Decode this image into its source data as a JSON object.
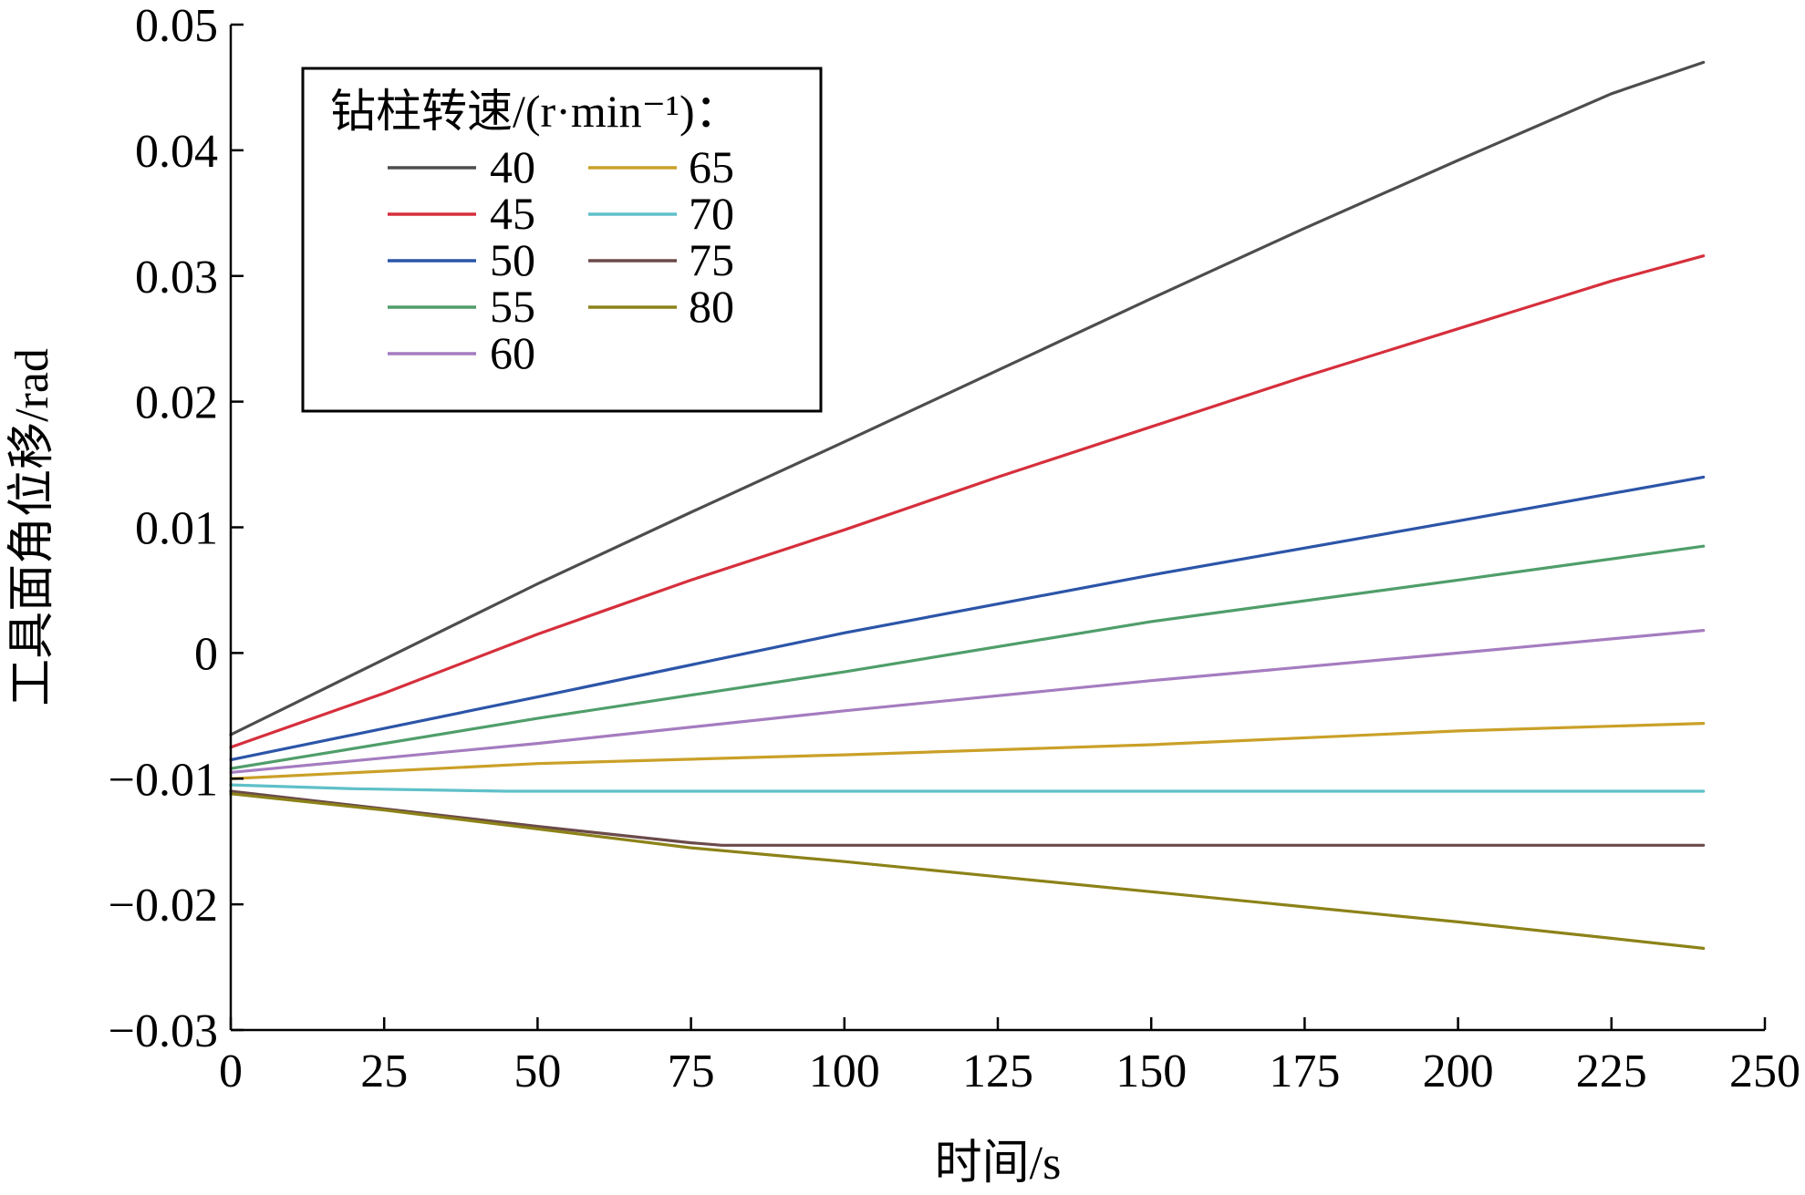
{
  "chart_data": {
    "type": "line",
    "title": "",
    "xlabel": "时间/s",
    "ylabel": "工具面角位移/rad",
    "xlim": [
      0,
      250
    ],
    "ylim": [
      -0.03,
      0.05
    ],
    "x_ticks": [
      0,
      25,
      50,
      75,
      100,
      125,
      150,
      175,
      200,
      225,
      250
    ],
    "x_tick_labels": [
      "0",
      "25",
      "50",
      "75",
      "100",
      "125",
      "150",
      "175",
      "200",
      "225",
      "250"
    ],
    "y_ticks": [
      -0.03,
      -0.02,
      -0.01,
      0,
      0.01,
      0.02,
      0.03,
      0.04,
      0.05
    ],
    "y_tick_labels": [
      "−0.03",
      "−0.02",
      "−0.01",
      "0",
      "0.01",
      "0.02",
      "0.03",
      "0.04",
      "0.05"
    ],
    "grid": false,
    "legend": {
      "title": "钻柱转速/(r·min⁻¹)：",
      "placement": "top-left",
      "columns": 2
    },
    "series": [
      {
        "name": "40",
        "color": "#4d4d4d",
        "x": [
          0,
          25,
          50,
          75,
          100,
          125,
          150,
          175,
          200,
          225,
          240
        ],
        "y": [
          -0.0065,
          -0.0005,
          0.0055,
          0.0112,
          0.0168,
          0.0225,
          0.0282,
          0.0338,
          0.0392,
          0.0445,
          0.047
        ]
      },
      {
        "name": "45",
        "color": "#d62f3c",
        "x": [
          0,
          25,
          50,
          75,
          100,
          125,
          150,
          175,
          200,
          225,
          240
        ],
        "y": [
          -0.0075,
          -0.0032,
          0.0015,
          0.0058,
          0.0098,
          0.014,
          0.018,
          0.022,
          0.0258,
          0.0296,
          0.0316
        ]
      },
      {
        "name": "50",
        "color": "#2c55a8",
        "x": [
          0,
          50,
          100,
          150,
          200,
          240
        ],
        "y": [
          -0.0085,
          -0.0035,
          0.0016,
          0.0062,
          0.0105,
          0.014
        ]
      },
      {
        "name": "55",
        "color": "#4f9e6a",
        "x": [
          0,
          50,
          100,
          150,
          200,
          240
        ],
        "y": [
          -0.0092,
          -0.0052,
          -0.0015,
          0.0025,
          0.0058,
          0.0085
        ]
      },
      {
        "name": "60",
        "color": "#a57cc0",
        "x": [
          0,
          50,
          100,
          150,
          200,
          240
        ],
        "y": [
          -0.0095,
          -0.0072,
          -0.0046,
          -0.0022,
          0,
          0.0018
        ]
      },
      {
        "name": "65",
        "color": "#caa028",
        "x": [
          0,
          50,
          100,
          150,
          200,
          240
        ],
        "y": [
          -0.01,
          -0.0088,
          -0.0081,
          -0.0073,
          -0.0062,
          -0.0056
        ]
      },
      {
        "name": "70",
        "color": "#5fc0c8",
        "x": [
          0,
          20,
          45,
          100,
          240
        ],
        "y": [
          -0.0105,
          -0.0108,
          -0.011,
          -0.011,
          -0.011
        ]
      },
      {
        "name": "75",
        "color": "#6b4a4a",
        "x": [
          0,
          25,
          50,
          75,
          80,
          100,
          240
        ],
        "y": [
          -0.011,
          -0.0124,
          -0.0138,
          -0.0151,
          -0.0153,
          -0.0153,
          -0.0153
        ]
      },
      {
        "name": "80",
        "color": "#8c8218",
        "x": [
          0,
          25,
          50,
          75,
          100,
          125,
          150,
          175,
          200,
          225,
          240
        ],
        "y": [
          -0.0112,
          -0.0125,
          -0.014,
          -0.0155,
          -0.0166,
          -0.0178,
          -0.019,
          -0.0202,
          -0.0214,
          -0.0227,
          -0.0235
        ]
      }
    ]
  }
}
